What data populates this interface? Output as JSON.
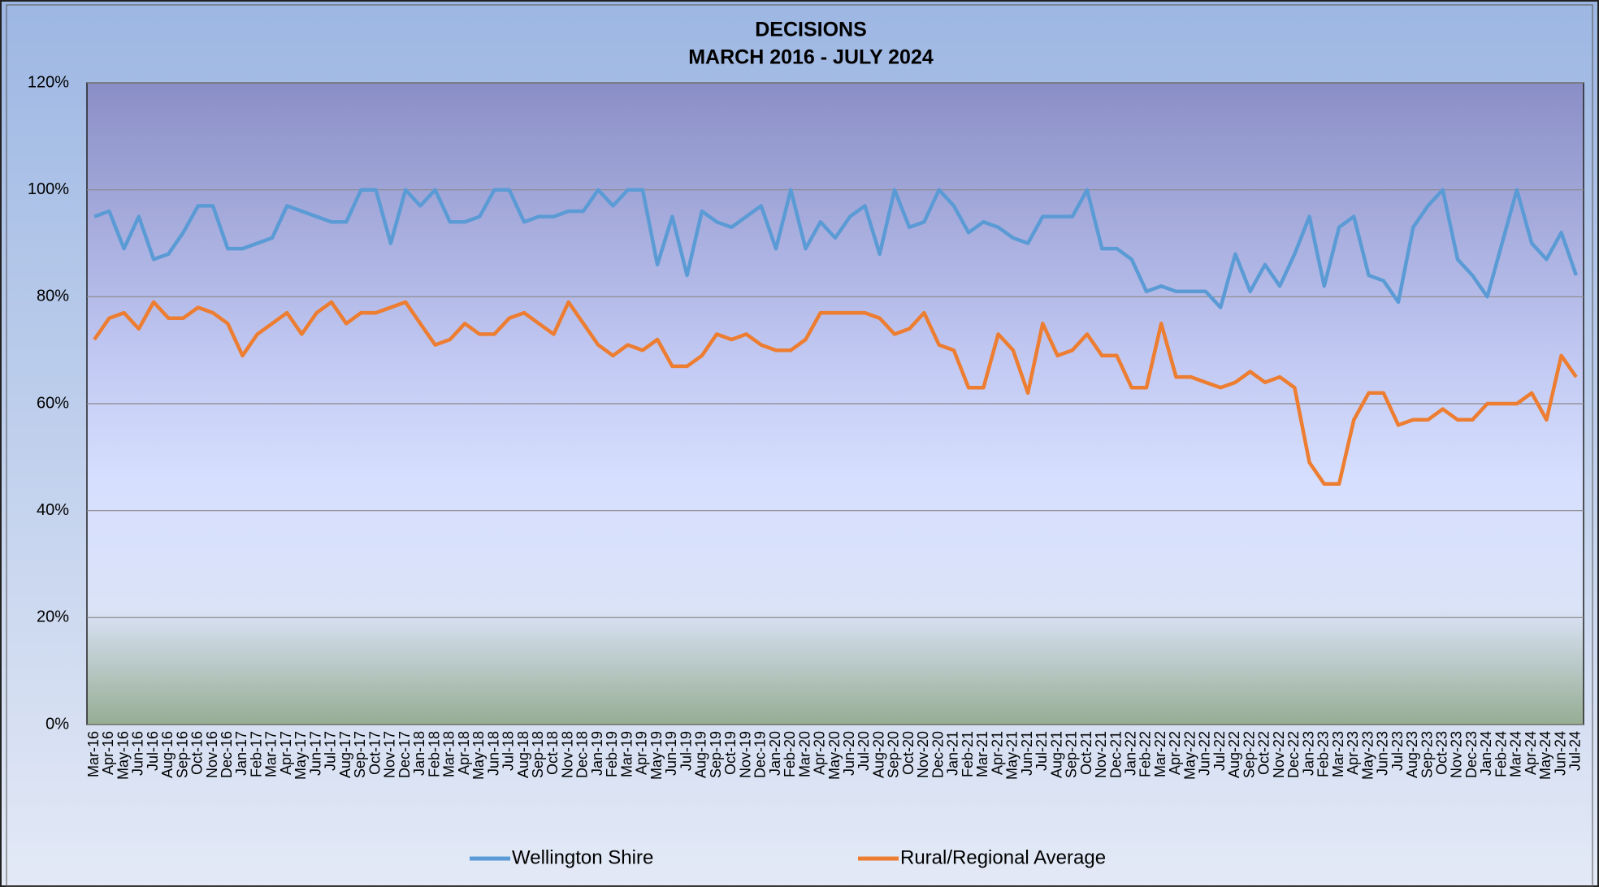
{
  "chart_data": {
    "type": "line",
    "title": "DECISIONS",
    "subtitle": "MARCH 2016 - JULY 2024",
    "categories": [
      "Mar-16",
      "Apr-16",
      "May-16",
      "Jun-16",
      "Jul-16",
      "Aug-16",
      "Sep-16",
      "Oct-16",
      "Nov-16",
      "Dec-16",
      "Jan-17",
      "Feb-17",
      "Mar-17",
      "Apr-17",
      "May-17",
      "Jun-17",
      "Jul-17",
      "Aug-17",
      "Sep-17",
      "Oct-17",
      "Nov-17",
      "Dec-17",
      "Jan-18",
      "Feb-18",
      "Mar-18",
      "Apr-18",
      "May-18",
      "Jun-18",
      "Jul-18",
      "Aug-18",
      "Sep-18",
      "Oct-18",
      "Nov-18",
      "Dec-18",
      "Jan-19",
      "Feb-19",
      "Mar-19",
      "Apr-19",
      "May-19",
      "Jun-19",
      "Jul-19",
      "Aug-19",
      "Sep-19",
      "Oct-19",
      "Nov-19",
      "Dec-19",
      "Jan-20",
      "Feb-20",
      "Mar-20",
      "Apr-20",
      "May-20",
      "Jun-20",
      "Jul-20",
      "Aug-20",
      "Sep-20",
      "Oct-20",
      "Nov-20",
      "Dec-20",
      "Jan-21",
      "Feb-21",
      "Mar-21",
      "Apr-21",
      "May-21",
      "Jun-21",
      "Jul-21",
      "Aug-21",
      "Sep-21",
      "Oct-21",
      "Nov-21",
      "Dec-21",
      "Jan-22",
      "Feb-22",
      "Mar-22",
      "Apr-22",
      "May-22",
      "Jun-22",
      "Jul-22",
      "Aug-22",
      "Sep-22",
      "Oct-22",
      "Nov-22",
      "Dec-22",
      "Jan-23",
      "Feb-23",
      "Mar-23",
      "Apr-23",
      "May-23",
      "Jun-23",
      "Jul-23",
      "Aug-23",
      "Sep-23",
      "Oct-23",
      "Nov-23",
      "Dec-23",
      "Jan-24",
      "Feb-24",
      "Mar-24",
      "Apr-24",
      "May-24",
      "Jun-24",
      "Jul-24"
    ],
    "series": [
      {
        "name": "Wellington Shire",
        "color": "#5b9bd5",
        "values": [
          95,
          96,
          89,
          95,
          87,
          88,
          92,
          97,
          97,
          89,
          89,
          90,
          91,
          97,
          96,
          95,
          94,
          94,
          100,
          100,
          90,
          100,
          97,
          100,
          94,
          94,
          95,
          100,
          100,
          94,
          95,
          95,
          96,
          96,
          100,
          97,
          100,
          100,
          86,
          95,
          84,
          96,
          94,
          93,
          95,
          97,
          89,
          100,
          89,
          94,
          91,
          95,
          97,
          88,
          100,
          93,
          94,
          100,
          97,
          92,
          94,
          93,
          91,
          90,
          95,
          95,
          95,
          100,
          89,
          89,
          87,
          81,
          82,
          81,
          81,
          81,
          78,
          88,
          81,
          86,
          82,
          88,
          95,
          82,
          93,
          95,
          84,
          83,
          79,
          93,
          97,
          100,
          87,
          84,
          80,
          90,
          100,
          90,
          87,
          92,
          84
        ]
      },
      {
        "name": "Rural/Regional Average",
        "color": "#ed7d31",
        "values": [
          72,
          76,
          77,
          74,
          79,
          76,
          76,
          78,
          77,
          75,
          69,
          73,
          75,
          77,
          73,
          77,
          79,
          75,
          77,
          77,
          78,
          79,
          75,
          71,
          72,
          75,
          73,
          73,
          76,
          77,
          75,
          73,
          79,
          75,
          71,
          69,
          71,
          70,
          72,
          67,
          67,
          69,
          73,
          72,
          73,
          71,
          70,
          70,
          72,
          77,
          77,
          77,
          77,
          76,
          73,
          74,
          77,
          71,
          70,
          63,
          63,
          73,
          70,
          62,
          75,
          69,
          70,
          73,
          69,
          69,
          63,
          63,
          75,
          65,
          65,
          64,
          63,
          64,
          66,
          64,
          65,
          63,
          49,
          45,
          45,
          57,
          62,
          62,
          56,
          57,
          57,
          59,
          57,
          57,
          60,
          60,
          60,
          62,
          57,
          69,
          65
        ]
      }
    ],
    "ylim": [
      0,
      120
    ],
    "yticks": [
      {
        "value": 0,
        "label": "0%"
      },
      {
        "value": 20,
        "label": "20%"
      },
      {
        "value": 40,
        "label": "40%"
      },
      {
        "value": 60,
        "label": "60%"
      },
      {
        "value": 80,
        "label": "80%"
      },
      {
        "value": 100,
        "label": "100%"
      },
      {
        "value": 120,
        "label": "120%"
      }
    ],
    "grid": true,
    "legend": "bottom"
  }
}
